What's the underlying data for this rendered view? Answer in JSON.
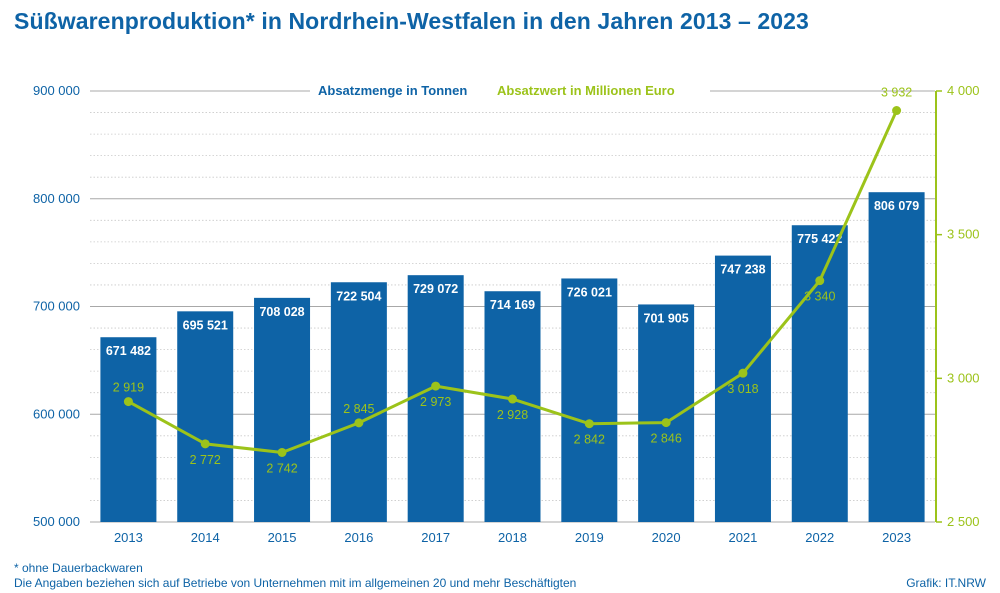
{
  "title": "Süßwarenproduktion* in Nordrhein-Westfalen in den Jahren 2013 – 2023",
  "footnote": "* ohne Dauerbackwaren",
  "note": "Die Angaben beziehen sich auf Betriebe von Unternehmen mit im allgemeinen 20 und mehr Beschäftigten",
  "source": "Grafik: IT.NRW",
  "colors": {
    "bar": "#0e63a6",
    "line": "#9cc31a",
    "text_blue": "#0e63a6",
    "grid": "#b7b7b7"
  },
  "chart_data": {
    "type": "bar",
    "categories": [
      "2013",
      "2014",
      "2015",
      "2016",
      "2017",
      "2018",
      "2019",
      "2020",
      "2021",
      "2022",
      "2023"
    ],
    "series": [
      {
        "name": "Absatzmenge in Tonnen",
        "type": "bar",
        "axis": "left",
        "values": [
          671482,
          695521,
          708028,
          722504,
          729072,
          714169,
          726021,
          701905,
          747238,
          775422,
          806079
        ],
        "labels": [
          "671 482",
          "695 521",
          "708 028",
          "722 504",
          "729 072",
          "714 169",
          "726 021",
          "701 905",
          "747 238",
          "775 422",
          "806 079"
        ]
      },
      {
        "name": "Absatzwert in Millionen Euro",
        "type": "line",
        "axis": "right",
        "values": [
          2919,
          2772,
          2742,
          2845,
          2973,
          2928,
          2842,
          2846,
          3018,
          3340,
          3932
        ],
        "labels": [
          "2 919",
          "2 772",
          "2 742",
          "2 845",
          "2 973",
          "2 928",
          "2 842",
          "2 846",
          "3 018",
          "3 340",
          "3 932"
        ]
      }
    ],
    "y_left": {
      "min": 500000,
      "max": 900000,
      "ticks": [
        500000,
        600000,
        700000,
        800000,
        900000
      ],
      "tick_labels": [
        "500 000",
        "600 000",
        "700 000",
        "800 000",
        "900 000"
      ]
    },
    "y_right": {
      "min": 2500,
      "max": 4000,
      "ticks": [
        2500,
        3000,
        3500,
        4000
      ],
      "tick_labels": [
        "2 500",
        "3 000",
        "3 500",
        "4 000"
      ]
    },
    "grid": true,
    "legend": "top"
  }
}
